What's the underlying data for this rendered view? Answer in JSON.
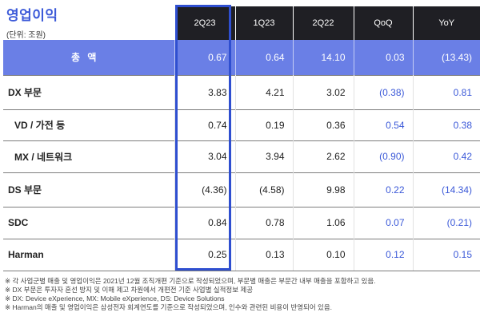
{
  "title": "영업이익",
  "unit": "(단위: 조원)",
  "columns": [
    "2Q23",
    "1Q23",
    "2Q22",
    "QoQ",
    "YoY"
  ],
  "total": {
    "label": "총 액",
    "values": [
      "0.67",
      "0.64",
      "14.10",
      "0.03",
      "(13.43)"
    ]
  },
  "rows": [
    {
      "label": "DX 부문",
      "values": [
        "3.83",
        "4.21",
        "3.02",
        "(0.38)",
        "0.81"
      ]
    },
    {
      "label": "VD / 가전 등",
      "values": [
        "0.74",
        "0.19",
        "0.36",
        "0.54",
        "0.38"
      ]
    },
    {
      "label": "MX / 네트워크",
      "values": [
        "3.04",
        "3.94",
        "2.62",
        "(0.90)",
        "0.42"
      ]
    },
    {
      "label": "DS 부문",
      "values": [
        "(4.36)",
        "(4.58)",
        "9.98",
        "0.22",
        "(14.34)"
      ]
    },
    {
      "label": "SDC",
      "values": [
        "0.84",
        "0.78",
        "1.06",
        "0.07",
        "(0.21)"
      ]
    },
    {
      "label": "Harman",
      "values": [
        "0.25",
        "0.13",
        "0.10",
        "0.12",
        "0.15"
      ]
    }
  ],
  "notes": [
    "※ 각 사업군별 매출 및 영업이익은 2021년 12월 조직개편 기준으로 작성되었으며, 부문별 매출은 부문간 내부 매출을 포함하고 있음.",
    "※ DX 부문은 투자자 혼선 방지 및 이해 제고 차원에서 개편전 기준 사업별 실적정보 제공",
    "※ DX: Device eXperience, MX: Mobile eXperience, DS: Device Solutions",
    "※ Harman의 매출 및 영업이익은 삼성전자 회계연도를 기준으로 작성되었으며, 인수와 관련된 비용이 반영되어 있음."
  ],
  "colors": {
    "title": "#3b59d8",
    "header_bg": "#1f1f24",
    "total_bg": "#6a7fe6",
    "highlight": "#2f4fd0",
    "blue_text": "#3b59d8"
  }
}
